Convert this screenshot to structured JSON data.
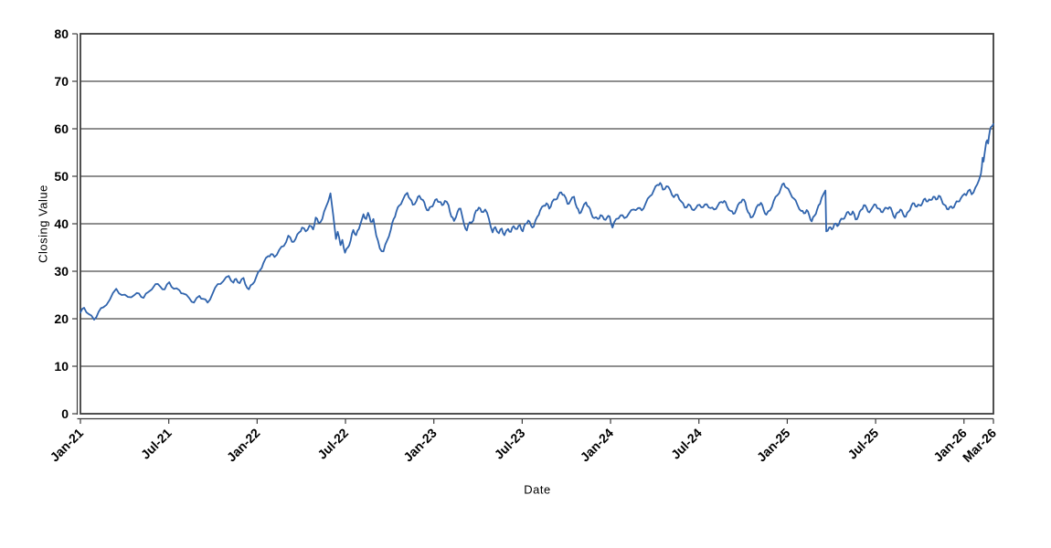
{
  "chart_data": {
    "type": "line",
    "title": "",
    "xlabel": "Date",
    "ylabel": "Closing Value",
    "ylim": [
      0,
      80
    ],
    "y_ticks": [
      0,
      10,
      20,
      30,
      40,
      50,
      60,
      70,
      80
    ],
    "x_unit": "months_since_Jan_2021",
    "x_range": [
      0,
      62
    ],
    "x_ticks": [
      {
        "t": 0,
        "label": "Jan-21"
      },
      {
        "t": 6,
        "label": "Jul-21"
      },
      {
        "t": 12,
        "label": "Jan-22"
      },
      {
        "t": 18,
        "label": "Jul-22"
      },
      {
        "t": 24,
        "label": "Jan-23"
      },
      {
        "t": 30,
        "label": "Jul-23"
      },
      {
        "t": 36,
        "label": "Jan-24"
      },
      {
        "t": 42,
        "label": "Jul-24"
      },
      {
        "t": 48,
        "label": "Jan-25"
      },
      {
        "t": 54,
        "label": "Jul-25"
      },
      {
        "t": 60,
        "label": "Jan-26"
      },
      {
        "t": 62,
        "label": "Mar-26"
      }
    ],
    "grid": "horizontal",
    "legend": "none",
    "line_color": "#3064ad",
    "grid_color": "#1f1f1f",
    "axis_color": "#3c3c3c",
    "series": [
      {
        "points": [
          [
            0,
            21.3
          ],
          [
            0.25,
            22.3
          ],
          [
            0.56,
            21.0
          ],
          [
            0.93,
            19.8
          ],
          [
            1.24,
            21.5
          ],
          [
            1.55,
            22.4
          ],
          [
            1.99,
            24.0
          ],
          [
            2.43,
            26.3
          ],
          [
            2.8,
            25.0
          ],
          [
            3.23,
            24.6
          ],
          [
            3.67,
            25.0
          ],
          [
            3.98,
            25.3
          ],
          [
            4.29,
            24.4
          ],
          [
            4.6,
            25.6
          ],
          [
            5.1,
            27.3
          ],
          [
            5.41,
            26.8
          ],
          [
            5.72,
            26.2
          ],
          [
            6.03,
            27.7
          ],
          [
            6.34,
            26.3
          ],
          [
            6.72,
            26.0
          ],
          [
            6.97,
            25.3
          ],
          [
            7.4,
            24.3
          ],
          [
            7.71,
            23.4
          ],
          [
            8.08,
            24.8
          ],
          [
            8.33,
            24.2
          ],
          [
            8.64,
            23.4
          ],
          [
            8.96,
            25.2
          ],
          [
            9.33,
            27.3
          ],
          [
            9.7,
            27.9
          ],
          [
            10.07,
            29.0
          ],
          [
            10.39,
            27.6
          ],
          [
            10.57,
            28.4
          ],
          [
            10.82,
            27.5
          ],
          [
            11.07,
            28.6
          ],
          [
            11.32,
            26.5
          ],
          [
            11.44,
            26.2
          ],
          [
            11.69,
            27.3
          ],
          [
            11.94,
            28.8
          ],
          [
            12.19,
            30.2
          ],
          [
            12.44,
            31.8
          ],
          [
            12.75,
            33.2
          ],
          [
            12.94,
            33.6
          ],
          [
            13.18,
            33.0
          ],
          [
            13.5,
            34.5
          ],
          [
            13.81,
            35.3
          ],
          [
            14.12,
            37.5
          ],
          [
            14.37,
            36.2
          ],
          [
            14.61,
            36.8
          ],
          [
            14.86,
            38.2
          ],
          [
            15.05,
            39.2
          ],
          [
            15.3,
            38.4
          ],
          [
            15.55,
            39.6
          ],
          [
            15.8,
            38.8
          ],
          [
            15.98,
            41.3
          ],
          [
            16.17,
            40.2
          ],
          [
            16.42,
            41.0
          ],
          [
            16.67,
            43.5
          ],
          [
            16.98,
            46.4
          ],
          [
            17.16,
            42.0
          ],
          [
            17.35,
            36.8
          ],
          [
            17.47,
            38.3
          ],
          [
            17.66,
            35.5
          ],
          [
            17.79,
            36.6
          ],
          [
            17.97,
            33.9
          ],
          [
            18.16,
            35.0
          ],
          [
            18.35,
            36.5
          ],
          [
            18.53,
            38.7
          ],
          [
            18.72,
            37.6
          ],
          [
            18.91,
            38.9
          ],
          [
            19.22,
            42.0
          ],
          [
            19.4,
            41.0
          ],
          [
            19.53,
            42.3
          ],
          [
            19.71,
            40.4
          ],
          [
            19.9,
            41.0
          ],
          [
            20.09,
            37.5
          ],
          [
            20.33,
            34.8
          ],
          [
            20.58,
            34.2
          ],
          [
            20.83,
            36.5
          ],
          [
            21.08,
            38.8
          ],
          [
            21.27,
            41.0
          ],
          [
            21.45,
            42.5
          ],
          [
            21.64,
            43.8
          ],
          [
            21.89,
            45.0
          ],
          [
            22.2,
            46.5
          ],
          [
            22.39,
            45.2
          ],
          [
            22.57,
            44.0
          ],
          [
            22.82,
            44.8
          ],
          [
            23.01,
            45.9
          ],
          [
            23.26,
            45.0
          ],
          [
            23.44,
            43.5
          ],
          [
            23.63,
            42.8
          ],
          [
            23.82,
            43.6
          ],
          [
            24.0,
            44.3
          ],
          [
            24.19,
            45.2
          ],
          [
            24.38,
            44.6
          ],
          [
            24.56,
            43.9
          ],
          [
            24.75,
            44.8
          ],
          [
            25.0,
            43.9
          ],
          [
            25.19,
            41.5
          ],
          [
            25.37,
            40.6
          ],
          [
            25.62,
            42.6
          ],
          [
            25.81,
            43.2
          ],
          [
            26.06,
            39.8
          ],
          [
            26.24,
            38.6
          ],
          [
            26.43,
            40.3
          ],
          [
            26.68,
            40.7
          ],
          [
            26.87,
            42.8
          ],
          [
            27.05,
            43.4
          ],
          [
            27.24,
            42.5
          ],
          [
            27.49,
            43.0
          ],
          [
            27.74,
            41.0
          ],
          [
            27.99,
            38.2
          ],
          [
            28.17,
            39.3
          ],
          [
            28.42,
            38.0
          ],
          [
            28.61,
            39.0
          ],
          [
            28.79,
            37.6
          ],
          [
            29.04,
            38.9
          ],
          [
            29.23,
            38.3
          ],
          [
            29.42,
            39.5
          ],
          [
            29.66,
            38.9
          ],
          [
            29.85,
            39.7
          ],
          [
            30.04,
            38.4
          ],
          [
            30.22,
            40.0
          ],
          [
            30.41,
            40.7
          ],
          [
            30.6,
            39.6
          ],
          [
            30.78,
            39.4
          ],
          [
            31.03,
            41.5
          ],
          [
            31.22,
            42.8
          ],
          [
            31.47,
            43.8
          ],
          [
            31.65,
            44.3
          ],
          [
            31.84,
            43.2
          ],
          [
            32.03,
            44.6
          ],
          [
            32.28,
            45.1
          ],
          [
            32.46,
            46.0
          ],
          [
            32.65,
            46.6
          ],
          [
            32.84,
            46.1
          ],
          [
            33.08,
            44.2
          ],
          [
            33.27,
            44.8
          ],
          [
            33.52,
            45.7
          ],
          [
            33.71,
            43.4
          ],
          [
            33.89,
            42.2
          ],
          [
            34.08,
            43.1
          ],
          [
            34.33,
            44.5
          ],
          [
            34.51,
            43.6
          ],
          [
            34.7,
            42.1
          ],
          [
            34.89,
            41.2
          ],
          [
            35.14,
            41.0
          ],
          [
            35.32,
            41.8
          ],
          [
            35.57,
            40.9
          ],
          [
            35.76,
            41.3
          ],
          [
            35.94,
            41.5
          ],
          [
            36.13,
            39.2
          ],
          [
            36.38,
            41.0
          ],
          [
            36.69,
            41.8
          ],
          [
            36.94,
            41.2
          ],
          [
            37.25,
            42.2
          ],
          [
            37.56,
            43.0
          ],
          [
            37.87,
            43.3
          ],
          [
            38.12,
            42.8
          ],
          [
            38.37,
            44.2
          ],
          [
            38.68,
            45.8
          ],
          [
            38.93,
            47.0
          ],
          [
            39.18,
            48.2
          ],
          [
            39.37,
            48.6
          ],
          [
            39.55,
            47.2
          ],
          [
            39.8,
            47.9
          ],
          [
            40.05,
            47.1
          ],
          [
            40.3,
            45.6
          ],
          [
            40.55,
            46.1
          ],
          [
            40.8,
            44.7
          ],
          [
            41.04,
            43.4
          ],
          [
            41.29,
            44.1
          ],
          [
            41.54,
            43.0
          ],
          [
            41.79,
            43.3
          ],
          [
            42.04,
            44.0
          ],
          [
            42.29,
            43.5
          ],
          [
            42.54,
            44.1
          ],
          [
            42.79,
            43.3
          ],
          [
            43.03,
            43.0
          ],
          [
            43.28,
            43.8
          ],
          [
            43.53,
            44.6
          ],
          [
            43.72,
            44.8
          ],
          [
            43.91,
            43.7
          ],
          [
            44.15,
            42.7
          ],
          [
            44.34,
            42.1
          ],
          [
            44.53,
            42.9
          ],
          [
            44.78,
            44.5
          ],
          [
            44.96,
            45.1
          ],
          [
            45.15,
            44.5
          ],
          [
            45.34,
            42.4
          ],
          [
            45.52,
            41.3
          ],
          [
            45.77,
            42.2
          ],
          [
            46.02,
            44.0
          ],
          [
            46.21,
            44.4
          ],
          [
            46.39,
            43.0
          ],
          [
            46.58,
            41.9
          ],
          [
            46.83,
            42.8
          ],
          [
            47.08,
            44.8
          ],
          [
            47.33,
            46.0
          ],
          [
            47.57,
            47.5
          ],
          [
            47.76,
            48.5
          ],
          [
            47.95,
            47.6
          ],
          [
            48.2,
            46.5
          ],
          [
            48.45,
            45.3
          ],
          [
            48.69,
            44.0
          ],
          [
            48.94,
            42.7
          ],
          [
            49.13,
            42.2
          ],
          [
            49.32,
            42.9
          ],
          [
            49.5,
            41.7
          ],
          [
            49.66,
            40.5
          ],
          [
            49.85,
            41.7
          ],
          [
            50.03,
            43.0
          ],
          [
            50.22,
            44.2
          ],
          [
            50.34,
            45.5
          ],
          [
            50.47,
            46.3
          ],
          [
            50.59,
            47.0
          ],
          [
            50.65,
            38.4
          ],
          [
            50.84,
            39.2
          ],
          [
            51.02,
            38.8
          ],
          [
            51.21,
            40.0
          ],
          [
            51.4,
            39.5
          ],
          [
            51.58,
            40.6
          ],
          [
            51.77,
            41.0
          ],
          [
            51.96,
            41.7
          ],
          [
            52.14,
            42.5
          ],
          [
            52.27,
            41.9
          ],
          [
            52.45,
            42.6
          ],
          [
            52.64,
            40.9
          ],
          [
            52.83,
            41.6
          ],
          [
            53.01,
            42.9
          ],
          [
            53.2,
            43.9
          ],
          [
            53.39,
            43.3
          ],
          [
            53.57,
            42.4
          ],
          [
            53.7,
            43.0
          ],
          [
            53.82,
            43.6
          ],
          [
            54.01,
            44.0
          ],
          [
            54.19,
            43.2
          ],
          [
            54.38,
            42.5
          ],
          [
            54.56,
            42.9
          ],
          [
            54.75,
            43.3
          ],
          [
            54.94,
            43.5
          ],
          [
            55.12,
            42.6
          ],
          [
            55.31,
            41.2
          ],
          [
            55.5,
            42.4
          ],
          [
            55.68,
            43.0
          ],
          [
            55.87,
            42.0
          ],
          [
            56.05,
            41.5
          ],
          [
            56.24,
            42.6
          ],
          [
            56.43,
            43.8
          ],
          [
            56.61,
            44.3
          ],
          [
            56.8,
            43.6
          ],
          [
            56.99,
            43.9
          ],
          [
            57.17,
            44.3
          ],
          [
            57.36,
            45.3
          ],
          [
            57.54,
            44.7
          ],
          [
            57.73,
            45.0
          ],
          [
            57.92,
            45.7
          ],
          [
            58.1,
            45.1
          ],
          [
            58.29,
            45.9
          ],
          [
            58.48,
            45.0
          ],
          [
            58.66,
            44.0
          ],
          [
            58.85,
            43.1
          ],
          [
            59.03,
            43.5
          ],
          [
            59.22,
            43.3
          ],
          [
            59.41,
            44.2
          ],
          [
            59.59,
            44.7
          ],
          [
            59.78,
            45.3
          ],
          [
            59.9,
            45.9
          ],
          [
            60.03,
            46.3
          ],
          [
            60.15,
            46.0
          ],
          [
            60.28,
            46.9
          ],
          [
            60.4,
            47.2
          ],
          [
            60.52,
            46.2
          ],
          [
            60.65,
            46.6
          ],
          [
            60.77,
            47.6
          ],
          [
            60.9,
            48.3
          ],
          [
            61.02,
            49.2
          ],
          [
            61.15,
            50.5
          ],
          [
            61.21,
            52.0
          ],
          [
            61.27,
            53.9
          ],
          [
            61.33,
            53.1
          ],
          [
            61.39,
            54.6
          ],
          [
            61.45,
            55.8
          ],
          [
            61.51,
            57.2
          ],
          [
            61.58,
            57.6
          ],
          [
            61.64,
            56.9
          ],
          [
            61.7,
            58.5
          ],
          [
            61.76,
            59.6
          ],
          [
            61.82,
            60.3
          ],
          [
            61.92,
            60.6
          ],
          [
            62,
            61.0
          ]
        ]
      }
    ]
  }
}
